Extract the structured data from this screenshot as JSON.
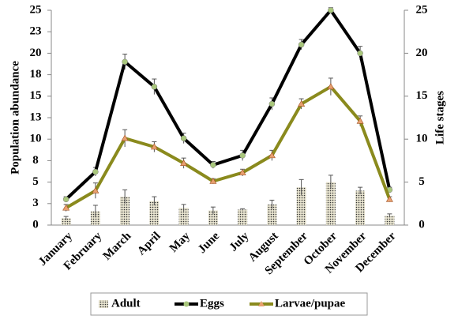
{
  "chart_data": {
    "type": "bar-line",
    "categories": [
      "January",
      "February",
      "March",
      "April",
      "May",
      "June",
      "July",
      "August",
      "September",
      "October",
      "November",
      "December"
    ],
    "y_label": "Population  abundance",
    "y2_label": "Life stages",
    "ylim": [
      0,
      25
    ],
    "yticks": [
      0,
      {
        "value": 2.5,
        "label": "3"
      },
      5,
      {
        "value": 7.5,
        "label": "8"
      },
      10,
      {
        "value": 12.5,
        "label": "13"
      },
      15,
      {
        "value": 17.5,
        "label": "18"
      },
      20,
      {
        "value": 22.5,
        "label": "23"
      },
      25
    ],
    "y2lim": [
      0,
      25
    ],
    "y2ticks": [
      0,
      5,
      10,
      15,
      20,
      25
    ],
    "legend": "bottom",
    "series": [
      {
        "name": "Adult",
        "kind": "bar",
        "color": "#c8c2a8",
        "values": [
          0.8,
          1.6,
          3.3,
          2.8,
          2.0,
          1.7,
          1.8,
          2.4,
          4.4,
          5.0,
          4.0,
          1.1
        ],
        "errors": [
          0.2,
          0.7,
          0.8,
          0.5,
          0.4,
          0.4,
          0.1,
          0.5,
          0.9,
          0.8,
          0.4,
          0.2
        ]
      },
      {
        "name": "Eggs",
        "kind": "line",
        "axis": "y2",
        "color": "#000000",
        "marker": "circle",
        "marker_color": "#a9c77c",
        "values": [
          3.0,
          6.2,
          19.0,
          16.1,
          10.1,
          7.0,
          8.1,
          14.1,
          21.0,
          25.0,
          20.0,
          4.1
        ],
        "errors": [
          0.3,
          0.5,
          0.9,
          0.9,
          0.6,
          0.4,
          0.6,
          0.7,
          0.6,
          0.3,
          0.8,
          0.3
        ]
      },
      {
        "name": "Larvae/pupae",
        "kind": "line",
        "axis": "y2",
        "color": "#8a8a1d",
        "marker": "triangle",
        "marker_color": "#e8a070",
        "values": [
          2.0,
          4.0,
          10.1,
          9.1,
          7.2,
          5.1,
          6.1,
          8.1,
          14.1,
          16.1,
          12.1,
          3.0
        ],
        "errors": [
          0.4,
          0.9,
          1.0,
          0.6,
          0.6,
          0.3,
          0.4,
          0.6,
          0.6,
          1.0,
          0.6,
          0.3
        ]
      }
    ]
  }
}
